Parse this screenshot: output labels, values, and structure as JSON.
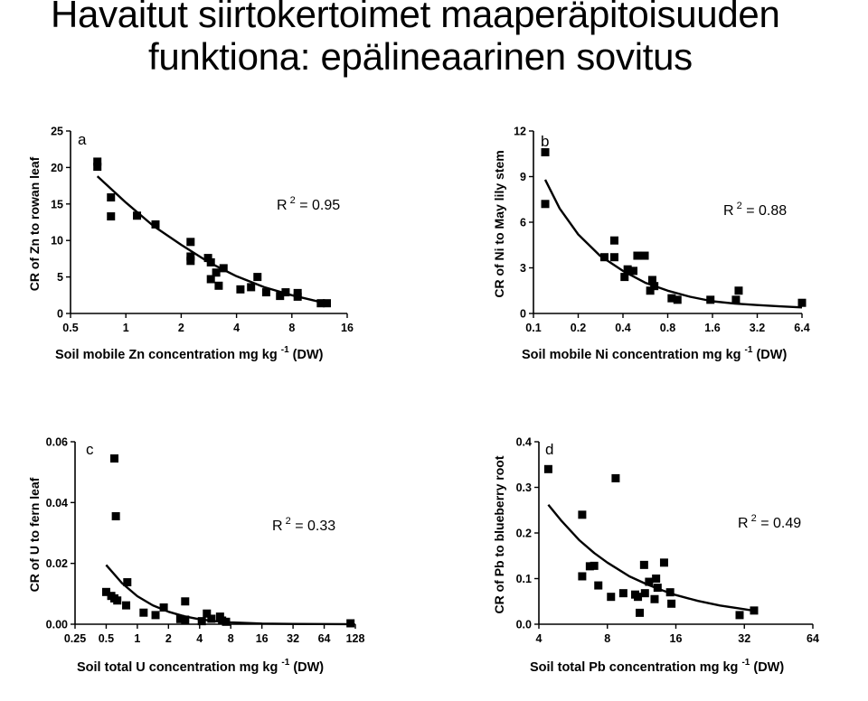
{
  "page": {
    "title_line1": "Havaitut siirtokertoimet maaperäpitoisuuden",
    "title_line2": "funktiona: epälineaarinen sovitus"
  },
  "chart_data": [
    {
      "type": "scatter",
      "panel_label": "a",
      "xscale": "log2",
      "xlim": [
        0.5,
        16
      ],
      "xticks": [
        0.5,
        1,
        2,
        4,
        8,
        16
      ],
      "xtick_labels": [
        "0.5",
        "1",
        "2",
        "4",
        "8",
        "16"
      ],
      "ylim": [
        0,
        25
      ],
      "yticks": [
        0,
        5,
        10,
        15,
        20,
        25
      ],
      "ytick_labels": [
        "0",
        "5",
        "10",
        "15",
        "20",
        "25"
      ],
      "xlabel": "Soil mobile Zn concentration mg kg",
      "xlabel_sup": "-1",
      "xlabel_unit": "(DW)",
      "ylabel": "CR of Zn to rowan leaf",
      "r2_text": "R",
      "r2_value": "= 0.95",
      "r2": 0.95,
      "points": [
        [
          0.7,
          20.8
        ],
        [
          0.7,
          20.1
        ],
        [
          0.83,
          15.9
        ],
        [
          0.83,
          13.3
        ],
        [
          1.15,
          13.4
        ],
        [
          1.45,
          12.2
        ],
        [
          2.25,
          9.8
        ],
        [
          2.25,
          7.8
        ],
        [
          2.25,
          7.2
        ],
        [
          2.8,
          7.6
        ],
        [
          2.9,
          7.0
        ],
        [
          2.9,
          4.7
        ],
        [
          3.1,
          5.6
        ],
        [
          3.2,
          3.8
        ],
        [
          3.4,
          6.2
        ],
        [
          4.2,
          3.3
        ],
        [
          4.8,
          3.6
        ],
        [
          5.2,
          5.0
        ],
        [
          5.8,
          2.9
        ],
        [
          6.9,
          2.4
        ],
        [
          7.4,
          2.9
        ],
        [
          8.6,
          2.8
        ],
        [
          8.6,
          2.3
        ],
        [
          11.5,
          1.4
        ],
        [
          12.4,
          1.4
        ]
      ],
      "fit": [
        [
          0.7,
          18.8
        ],
        [
          1,
          15.2
        ],
        [
          1.41,
          12.0
        ],
        [
          2,
          9.4
        ],
        [
          2.83,
          7.0
        ],
        [
          4,
          5.1
        ],
        [
          5.66,
          3.6
        ],
        [
          8,
          2.5
        ],
        [
          11.3,
          1.6
        ],
        [
          12.4,
          1.4
        ]
      ]
    },
    {
      "type": "scatter",
      "panel_label": "b",
      "xscale": "log2",
      "xlim": [
        0.1,
        6.4
      ],
      "xticks": [
        0.1,
        0.2,
        0.4,
        0.8,
        1.6,
        3.2,
        6.4
      ],
      "xtick_labels": [
        "0.1",
        "0.2",
        "0.4",
        "0.8",
        "1.6",
        "3.2",
        "6.4"
      ],
      "ylim": [
        0,
        12
      ],
      "yticks": [
        0,
        3,
        6,
        9,
        12
      ],
      "ytick_labels": [
        "0",
        "3",
        "6",
        "9",
        "12"
      ],
      "xlabel": "Soil mobile Ni concentration mg kg",
      "xlabel_sup": "-1",
      "xlabel_unit": "(DW)",
      "ylabel": "CR of Ni to May lily stem",
      "r2_text": "R",
      "r2_value": "= 0.88",
      "r2": 0.88,
      "points": [
        [
          0.12,
          10.6
        ],
        [
          0.12,
          7.2
        ],
        [
          0.3,
          3.7
        ],
        [
          0.35,
          4.8
        ],
        [
          0.35,
          3.7
        ],
        [
          0.41,
          2.4
        ],
        [
          0.43,
          2.9
        ],
        [
          0.47,
          2.8
        ],
        [
          0.5,
          3.8
        ],
        [
          0.56,
          3.8
        ],
        [
          0.61,
          1.5
        ],
        [
          0.63,
          2.2
        ],
        [
          0.65,
          1.8
        ],
        [
          0.85,
          1.0
        ],
        [
          0.93,
          0.9
        ],
        [
          1.55,
          0.9
        ],
        [
          2.3,
          0.9
        ],
        [
          2.4,
          1.5
        ],
        [
          6.4,
          0.7
        ]
      ],
      "fit": [
        [
          0.12,
          8.8
        ],
        [
          0.15,
          6.9
        ],
        [
          0.2,
          5.2
        ],
        [
          0.28,
          3.8
        ],
        [
          0.4,
          2.8
        ],
        [
          0.57,
          2.0
        ],
        [
          0.8,
          1.5
        ],
        [
          1.13,
          1.1
        ],
        [
          1.6,
          0.8
        ],
        [
          2.26,
          0.65
        ],
        [
          3.2,
          0.55
        ],
        [
          4.5,
          0.47
        ],
        [
          6.4,
          0.4
        ]
      ]
    },
    {
      "type": "scatter",
      "panel_label": "c",
      "xscale": "log2",
      "xlim": [
        0.25,
        128
      ],
      "xticks": [
        0.25,
        0.5,
        1,
        2,
        4,
        8,
        16,
        32,
        64,
        128
      ],
      "xtick_labels": [
        "0.25",
        "0.5",
        "1",
        "2",
        "4",
        "8",
        "16",
        "32",
        "64",
        "128"
      ],
      "ylim": [
        0,
        0.06
      ],
      "yticks": [
        0,
        0.02,
        0.04,
        0.06
      ],
      "ytick_labels": [
        "0.00",
        "0.02",
        "0.04",
        "0.06"
      ],
      "xlabel": "Soil total U concentration mg kg",
      "xlabel_sup": "-1",
      "xlabel_unit": "(DW)",
      "ylabel": "CR of U to fern leaf",
      "r2_text": "R",
      "r2_value": "= 0.33",
      "r2": 0.33,
      "points": [
        [
          0.6,
          0.0545
        ],
        [
          0.62,
          0.0355
        ],
        [
          0.5,
          0.0106
        ],
        [
          0.56,
          0.0093
        ],
        [
          0.6,
          0.0085
        ],
        [
          0.64,
          0.0078
        ],
        [
          0.8,
          0.0138
        ],
        [
          0.78,
          0.0062
        ],
        [
          1.15,
          0.0038
        ],
        [
          1.5,
          0.003
        ],
        [
          1.8,
          0.0055
        ],
        [
          2.6,
          0.0017
        ],
        [
          2.9,
          0.0015
        ],
        [
          2.9,
          0.0075
        ],
        [
          4.2,
          0.001
        ],
        [
          4.7,
          0.0035
        ],
        [
          5.2,
          0.0018
        ],
        [
          6.3,
          0.0025
        ],
        [
          6.6,
          0.0012
        ],
        [
          7.2,
          0.0008
        ],
        [
          115,
          0.0003
        ]
      ],
      "fit": [
        [
          0.5,
          0.0195
        ],
        [
          0.71,
          0.0135
        ],
        [
          1,
          0.0092
        ],
        [
          1.41,
          0.0062
        ],
        [
          2,
          0.0041
        ],
        [
          2.83,
          0.0026
        ],
        [
          4,
          0.0016
        ],
        [
          5.66,
          0.001
        ],
        [
          8,
          0.0006
        ],
        [
          16,
          0.0002
        ],
        [
          32,
          0.0001
        ],
        [
          115,
          0.0
        ]
      ]
    },
    {
      "type": "scatter",
      "panel_label": "d",
      "xscale": "log2",
      "xlim": [
        4,
        64
      ],
      "xticks": [
        4,
        8,
        16,
        32,
        64
      ],
      "xtick_labels": [
        "4",
        "8",
        "16",
        "32",
        "64"
      ],
      "ylim": [
        0,
        0.4
      ],
      "yticks": [
        0,
        0.1,
        0.2,
        0.3,
        0.4
      ],
      "ytick_labels": [
        "0.0",
        "0.1",
        "0.2",
        "0.3",
        "0.4"
      ],
      "xlabel": "Soil total Pb concentration mg kg",
      "xlabel_sup": "-1",
      "xlabel_unit": "(DW)",
      "ylabel": "CR of Pb to blueberry root",
      "r2_text": "R",
      "r2_value": "= 0.49",
      "r2": 0.49,
      "points": [
        [
          4.4,
          0.34
        ],
        [
          6.2,
          0.24
        ],
        [
          6.2,
          0.105
        ],
        [
          6.7,
          0.127
        ],
        [
          7,
          0.128
        ],
        [
          7.3,
          0.085
        ],
        [
          8.7,
          0.32
        ],
        [
          8.3,
          0.06
        ],
        [
          9.4,
          0.068
        ],
        [
          10.6,
          0.065
        ],
        [
          10.9,
          0.06
        ],
        [
          11.1,
          0.025
        ],
        [
          11.6,
          0.13
        ],
        [
          11.7,
          0.068
        ],
        [
          12.2,
          0.093
        ],
        [
          12.9,
          0.055
        ],
        [
          13.1,
          0.1
        ],
        [
          13.3,
          0.08
        ],
        [
          14.2,
          0.135
        ],
        [
          15.1,
          0.07
        ],
        [
          15.3,
          0.045
        ],
        [
          30.5,
          0.02
        ],
        [
          35.3,
          0.03
        ]
      ],
      "fit": [
        [
          4.4,
          0.262
        ],
        [
          5,
          0.228
        ],
        [
          6,
          0.185
        ],
        [
          7,
          0.156
        ],
        [
          8,
          0.135
        ],
        [
          10,
          0.105
        ],
        [
          12,
          0.087
        ],
        [
          14,
          0.074
        ],
        [
          16,
          0.064
        ],
        [
          20,
          0.051
        ],
        [
          25,
          0.041
        ],
        [
          30,
          0.035
        ],
        [
          35,
          0.03
        ]
      ]
    }
  ]
}
